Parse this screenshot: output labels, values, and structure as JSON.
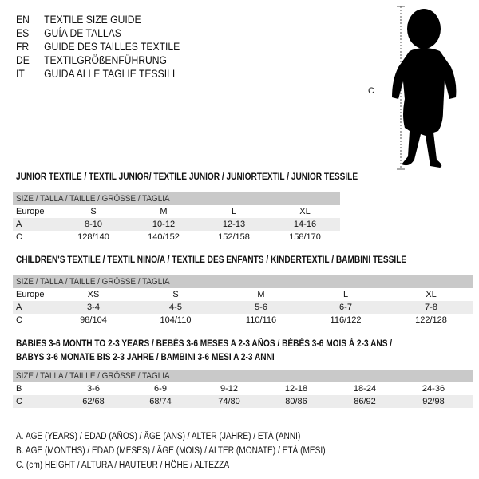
{
  "languages": [
    {
      "code": "EN",
      "text": "TEXTILE SIZE GUIDE"
    },
    {
      "code": "ES",
      "text": "GUÍA DE TALLAS"
    },
    {
      "code": "FR",
      "text": "GUIDE DES TAILLES TEXTILE"
    },
    {
      "code": "DE",
      "text": "TEXTILGRÖßENFÜHRUNG"
    },
    {
      "code": "IT",
      "text": "GUIDA ALLE TAGLIE TESSILI"
    }
  ],
  "figure": {
    "label": "C",
    "icon": "child-silhouette"
  },
  "junior": {
    "title": "JUNIOR TEXTILE / TEXTIL JUNIOR/ TEXTILE JUNIOR / JUNIORTEXTIL / JUNIOR TESSILE",
    "header": "SIZE / TALLA / TAILLE / GRÖSSE / TAGLIA",
    "rows": [
      {
        "label": "Europe",
        "values": [
          "S",
          "M",
          "L",
          "XL"
        ]
      },
      {
        "label": "A",
        "values": [
          "8-10",
          "10-12",
          "12-13",
          "14-16"
        ]
      },
      {
        "label": "C",
        "values": [
          "128/140",
          "140/152",
          "152/158",
          "158/170"
        ]
      }
    ]
  },
  "children": {
    "title": "CHILDREN'S TEXTILE / TEXTIL NIÑO/A / TEXTILE DES ENFANTS / KINDERTEXTIL / BAMBINI TESSILE",
    "header": "SIZE / TALLA / TAILLE / GRÖSSE / TAGLIA",
    "rows": [
      {
        "label": "Europe",
        "values": [
          "XS",
          "S",
          "M",
          "L",
          "XL"
        ]
      },
      {
        "label": "A",
        "values": [
          "3-4",
          "4-5",
          "5-6",
          "6-7",
          "7-8"
        ]
      },
      {
        "label": "C",
        "values": [
          "98/104",
          "104/110",
          "110/116",
          "116/122",
          "122/128"
        ]
      }
    ]
  },
  "babies": {
    "title1": "BABIES 3-6 MONTH TO 2-3 YEARS / BEBÉS 3-6 MESES A 2-3 AÑOS / BÉBÉS 3-6 MOIS À 2-3 ANS /",
    "title2": "BABYS 3-6 MONATE BIS 2-3 JAHRE / BAMBINI 3-6 MESI A 2-3 ANNI",
    "header": "SIZE / TALLA / TAILLE / GRÖSSE / TAGLIA",
    "rows": [
      {
        "label": "B",
        "values": [
          "3-6",
          "6-9",
          "9-12",
          "12-18",
          "18-24",
          "24-36"
        ]
      },
      {
        "label": "C",
        "values": [
          "62/68",
          "68/74",
          "74/80",
          "80/86",
          "86/92",
          "92/98"
        ]
      }
    ]
  },
  "legend": [
    "A. AGE (YEARS) / EDAD (AÑOS) / ÂGE (ANS) / ALTER (JAHRE) / ETÀ (ANNI)",
    "B. AGE (MONTHS) / EDAD (MESES) / ÂGE (MOIS) / ALTER (MONATE) / ETÀ (MESI)",
    "C. (cm) HEIGHT / ALTURA / HAUTEUR / HÖHE / ALTEZZA"
  ]
}
